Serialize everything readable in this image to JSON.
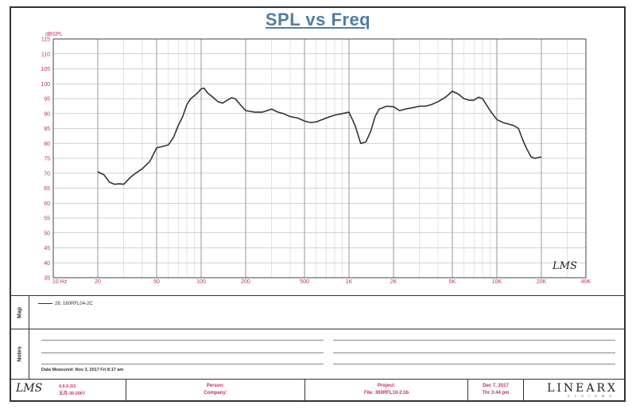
{
  "chart_data": {
    "type": "line",
    "title": "SPL vs Freq",
    "ylabel": "dBSPL",
    "xlabel": "",
    "xscale": "log",
    "xlim": [
      10,
      40000
    ],
    "ylim": [
      35,
      115
    ],
    "yticks": [
      35,
      40,
      45,
      50,
      55,
      60,
      65,
      70,
      75,
      80,
      85,
      90,
      95,
      100,
      105,
      110,
      115
    ],
    "xticks": [
      {
        "value": 10,
        "label": "10 Hz"
      },
      {
        "value": 20,
        "label": "20"
      },
      {
        "value": 50,
        "label": "50"
      },
      {
        "value": 100,
        "label": "100"
      },
      {
        "value": 200,
        "label": "200"
      },
      {
        "value": 500,
        "label": "500"
      },
      {
        "value": 1000,
        "label": "1K"
      },
      {
        "value": 2000,
        "label": "2K"
      },
      {
        "value": 5000,
        "label": "5K"
      },
      {
        "value": 10000,
        "label": "10K"
      },
      {
        "value": 20000,
        "label": "20K"
      },
      {
        "value": 40000,
        "label": "40K"
      }
    ],
    "grid": true,
    "series": [
      {
        "name": "28. 160RFL04-2C",
        "color": "#333333",
        "x": [
          20,
          22,
          24,
          26,
          28,
          30,
          33,
          36,
          40,
          45,
          50,
          55,
          60,
          65,
          70,
          75,
          80,
          85,
          90,
          95,
          100,
          105,
          110,
          120,
          130,
          140,
          150,
          160,
          170,
          180,
          200,
          230,
          260,
          300,
          330,
          360,
          400,
          450,
          500,
          550,
          600,
          700,
          800,
          900,
          1000,
          1100,
          1200,
          1300,
          1400,
          1500,
          1600,
          1800,
          2000,
          2200,
          2400,
          2700,
          3000,
          3300,
          3600,
          4000,
          4500,
          5000,
          5500,
          6000,
          6500,
          7000,
          7500,
          8000,
          9000,
          10000,
          11000,
          12000,
          13000,
          14000,
          15000,
          16000,
          17000,
          18000,
          20000
        ],
        "y": [
          70.5,
          69.5,
          67,
          66.3,
          66.5,
          66.3,
          68.5,
          70,
          71.5,
          74,
          78.5,
          79,
          79.5,
          82,
          86,
          89,
          93,
          95,
          96,
          97,
          98.3,
          98.5,
          97,
          95.5,
          94,
          93.5,
          94.5,
          95.3,
          95,
          93.5,
          91,
          90.5,
          90.5,
          91.5,
          90.5,
          90,
          89,
          88.5,
          87.5,
          87,
          87.2,
          88.5,
          89.5,
          90,
          90.5,
          86,
          80,
          80.5,
          84,
          89,
          91.5,
          92.5,
          92.3,
          91,
          91.5,
          92,
          92.5,
          92.5,
          93,
          94,
          95.5,
          97.5,
          96.5,
          95,
          94.5,
          94.5,
          95.5,
          95,
          91,
          88,
          87,
          86.5,
          86,
          85,
          81,
          78,
          75.5,
          75,
          75.5
        ]
      }
    ],
    "annotations": [
      "LMS"
    ]
  },
  "map": {
    "label": "Map",
    "legend": "28. 160RFL04-2C"
  },
  "notes": {
    "label": "Notes",
    "data_measured": "Data Measured: Nov 3, 2017  Fri 8:17 am"
  },
  "footer": {
    "logo": "LMS",
    "version": "4.6.0.3/1",
    "version_date": "五月-30-2007",
    "person_label": "Person:",
    "company_label": "Company:",
    "project_label": "Project:",
    "file_label": "File: 300RFL10-2.lib",
    "date": "Dec 7, 2017",
    "time": "Thr 3:44 pm",
    "brand": "LINEARX",
    "brand_sub": "SYSTEMS"
  }
}
